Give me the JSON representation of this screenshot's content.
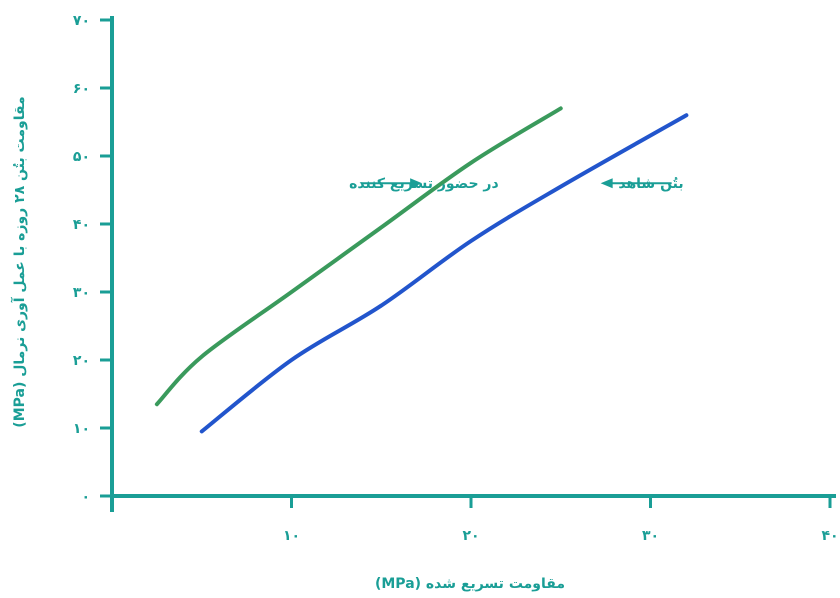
{
  "colors": {
    "axis": "#1a9e96",
    "text": "#1a9e96"
  },
  "chart_data": {
    "type": "line",
    "title": "",
    "xlabel": "مقاومت تسریع شده (MPa)",
    "ylabel": "مقاومت بتُن ۲۸ روزه با عمل آوری نرمال (MPa)",
    "xlim": [
      0,
      40
    ],
    "ylim": [
      0,
      70
    ],
    "x_ticks": [
      10,
      20,
      30,
      40
    ],
    "x_tick_labels": [
      "۱۰",
      "۲۰",
      "۳۰",
      "۴۰"
    ],
    "y_ticks": [
      0,
      10,
      20,
      30,
      40,
      50,
      60,
      70
    ],
    "y_tick_labels": [
      "۰",
      "۱۰",
      "۲۰",
      "۳۰",
      "۴۰",
      "۵۰",
      "۶۰",
      "۷۰"
    ],
    "grid": false,
    "series": [
      {
        "name": "در حضور تسریع کننده",
        "color": "#3a9a5c",
        "x": [
          2.5,
          5,
          10,
          15,
          20,
          25
        ],
        "y": [
          13.5,
          20.5,
          30,
          39.5,
          49,
          57
        ]
      },
      {
        "name": "بتُن شاهد",
        "color": "#2255cc",
        "x": [
          5,
          10,
          15,
          20,
          25,
          32
        ],
        "y": [
          9.5,
          20,
          28,
          37.5,
          45.5,
          56
        ]
      }
    ],
    "annotations": [
      {
        "text": "در حضور تسریع کننده",
        "series": 0,
        "x": 17.5,
        "y": 46,
        "label_side": "left"
      },
      {
        "text": "بتُن شاهد",
        "series": 1,
        "x": 27,
        "y": 46,
        "label_side": "right"
      }
    ]
  }
}
